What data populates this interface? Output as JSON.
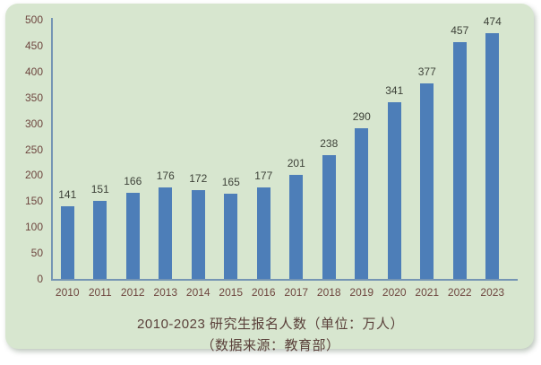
{
  "page": {
    "background_color": "#ffffff",
    "card_background_color": "#d7e6cf"
  },
  "chart_data": {
    "type": "bar",
    "title": "2010-2023 研究生报名人数（单位：万人）",
    "subtitle": "（数据来源：教育部）",
    "categories": [
      "2010",
      "2011",
      "2012",
      "2013",
      "2014",
      "2015",
      "2016",
      "2017",
      "2018",
      "2019",
      "2020",
      "2021",
      "2022",
      "2023"
    ],
    "values": [
      141,
      151,
      166,
      176,
      172,
      165,
      177,
      201,
      238,
      290,
      341,
      377,
      457,
      474
    ],
    "xlabel": "",
    "ylabel": "",
    "ylim": [
      0,
      500
    ],
    "yticks": [
      0,
      50,
      100,
      150,
      200,
      250,
      300,
      350,
      400,
      450,
      500
    ],
    "grid": false,
    "legend": "none",
    "data_labels": true,
    "bar_color": "#4d7eb8",
    "axis_line_color": "#7595b4",
    "tick_label_color": "#6e463f",
    "value_label_color": "#3d4138",
    "title_color": "#5a403a"
  }
}
